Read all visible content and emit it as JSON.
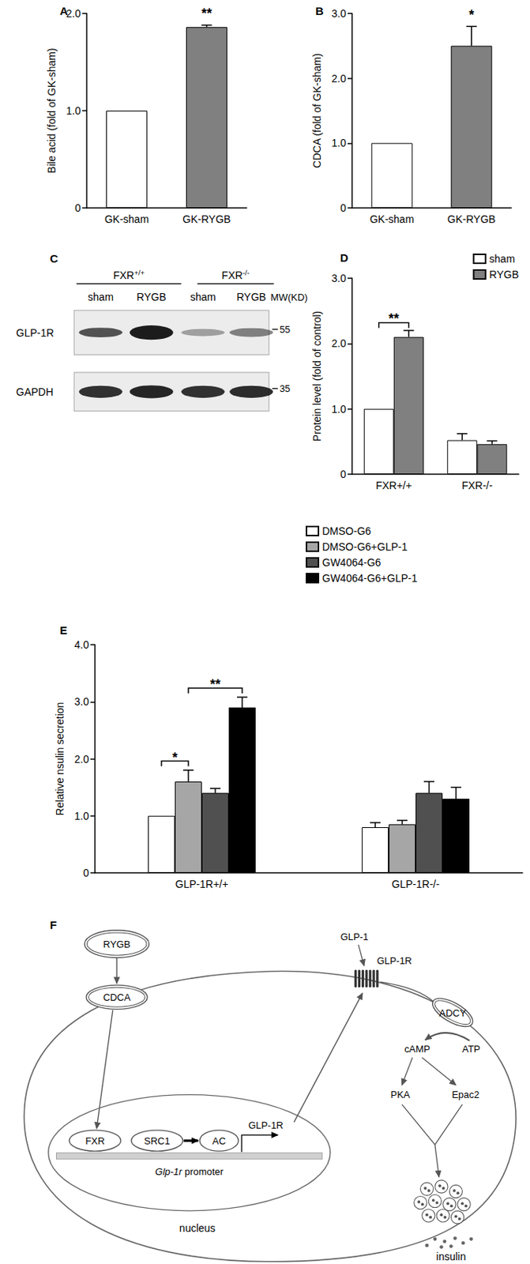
{
  "chart_data": [
    {
      "type": "bar",
      "title": "A",
      "ylabel": "Bile acid (fold of GK-sham)",
      "categories": [
        "GK-sham",
        "GK-RYGB"
      ],
      "values": [
        1.0,
        1.86
      ],
      "errors": [
        0,
        0.02
      ],
      "colors": [
        "#ffffff",
        "#808080"
      ],
      "ylim": [
        0,
        2
      ],
      "yticks": [
        0,
        {
          "value": 1,
          "label": "1.0"
        },
        {
          "value": 2,
          "label": "2.0"
        }
      ],
      "annotations": [
        {
          "text": "**",
          "category": "GK-RYGB"
        }
      ]
    },
    {
      "type": "bar",
      "title": "B",
      "ylabel": "CDCA (fold of GK-sham)",
      "categories": [
        "GK-sham",
        "GK-RYGB"
      ],
      "values": [
        1.0,
        2.5
      ],
      "errors": [
        0,
        0.3
      ],
      "colors": [
        "#ffffff",
        "#808080"
      ],
      "ylim": [
        0,
        3
      ],
      "yticks": [
        0,
        {
          "value": 1,
          "label": "1.0"
        },
        {
          "value": 2,
          "label": "2.0"
        },
        {
          "value": 3,
          "label": "3.0"
        }
      ],
      "annotations": [
        {
          "text": "*",
          "category": "GK-RYGB"
        }
      ]
    },
    {
      "type": "bar",
      "title": "D",
      "ylabel": "Protein level (fold of control)",
      "categories": [
        "FXR+/+",
        "FXR-/-"
      ],
      "series": [
        {
          "name": "sham",
          "color": "#ffffff",
          "values": [
            1.0,
            0.52
          ],
          "errors": [
            0,
            0.1
          ]
        },
        {
          "name": "RYGB",
          "color": "#808080",
          "values": [
            2.1,
            0.46
          ],
          "errors": [
            0.1,
            0.05
          ]
        }
      ],
      "ylim": [
        0,
        3
      ],
      "yticks": [
        0,
        {
          "value": 1,
          "label": "1.0"
        },
        {
          "value": 2,
          "label": "2.0"
        },
        {
          "value": 3,
          "label": "3.0"
        }
      ],
      "legend": "top-right",
      "annotations": [
        {
          "text": "**",
          "category": "FXR+/+",
          "series": [
            "sham",
            "RYGB"
          ]
        }
      ]
    },
    {
      "type": "bar",
      "title": "E",
      "ylabel": "Relative nsulin secretion",
      "categories": [
        "GLP-1R+/+",
        "GLP-1R-/-"
      ],
      "series": [
        {
          "name": "DMSO-G6",
          "color": "#ffffff",
          "values": [
            1.0,
            0.8
          ],
          "errors": [
            0,
            0.08
          ]
        },
        {
          "name": "DMSO-G6+GLP-1",
          "color": "#a6a6a6",
          "values": [
            1.6,
            0.85
          ],
          "errors": [
            0.2,
            0.07
          ]
        },
        {
          "name": "GW4064-G6",
          "color": "#505050",
          "values": [
            1.4,
            1.4
          ],
          "errors": [
            0.08,
            0.2
          ]
        },
        {
          "name": "GW4064-G6+GLP-1",
          "color": "#000000",
          "values": [
            2.9,
            1.3
          ],
          "errors": [
            0.18,
            0.2
          ]
        }
      ],
      "ylim": [
        0,
        4
      ],
      "yticks": [
        0,
        {
          "value": 1,
          "label": "1.0"
        },
        {
          "value": 2,
          "label": "2.0"
        },
        {
          "value": 3,
          "label": "3.0"
        },
        {
          "value": 4,
          "label": "4.0"
        }
      ],
      "legend": "top-right",
      "annotations": [
        {
          "text": "*",
          "category": "GLP-1R+/+",
          "series": [
            "DMSO-G6",
            "DMSO-G6+GLP-1"
          ]
        },
        {
          "text": "**",
          "category": "GLP-1R+/+",
          "series": [
            "DMSO-G6+GLP-1",
            "GW4064-G6+GLP-1"
          ]
        }
      ]
    }
  ],
  "blot": {
    "title": "C",
    "groups": [
      "FXR+/+",
      "FXR-/-"
    ],
    "lanes": [
      "sham",
      "RYGB",
      "sham",
      "RYGB"
    ],
    "mw_header": "MW(KD)",
    "rows": [
      {
        "label": "GLP-1R",
        "mw": 55
      },
      {
        "label": "GAPDH",
        "mw": 35
      }
    ]
  },
  "diagram": {
    "title": "F",
    "nodes": {
      "rygb": "RYGB",
      "cdca": "CDCA",
      "fxr": "FXR",
      "src1": "SRC1",
      "ac": "AC",
      "gene": "GLP-1R",
      "promoter_gene": "Glp-1r",
      "promoter": "promoter",
      "nucleus": "nucleus",
      "ligand": "GLP-1",
      "receptor": "GLP-1R",
      "adcy": "ADCY",
      "camp": "cAMP",
      "atp": "ATP",
      "pka": "PKA",
      "epac2": "Epac2",
      "insulin": "insulin"
    }
  }
}
